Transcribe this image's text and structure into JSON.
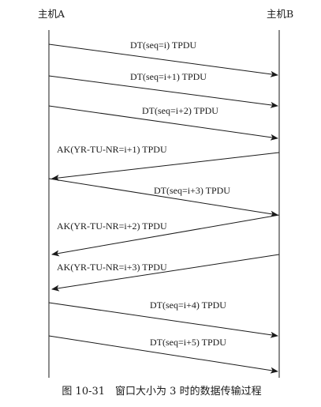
{
  "hosts": {
    "left": "主机A",
    "right": "主机B"
  },
  "messages": [
    {
      "label": "DT(seq=i) TPDU",
      "direction": "A-to-B"
    },
    {
      "label": "DT(seq=i+1) TPDU",
      "direction": "A-to-B"
    },
    {
      "label": "DT(seq=i+2) TPDU",
      "direction": "A-to-B"
    },
    {
      "label": "AK(YR-TU-NR=i+1) TPDU",
      "direction": "B-to-A"
    },
    {
      "label": "DT(seq=i+3) TPDU",
      "direction": "A-to-B"
    },
    {
      "label": "AK(YR-TU-NR=i+2) TPDU",
      "direction": "B-to-A"
    },
    {
      "label": "AK(YR-TU-NR=i+3) TPDU",
      "direction": "B-to-A"
    },
    {
      "label": "DT(seq=i+4) TPDU",
      "direction": "A-to-B"
    },
    {
      "label": "DT(seq=i+5) TPDU",
      "direction": "A-to-B"
    }
  ],
  "caption": "图 10-31　窗口大小为 3 时的数据传输过程"
}
